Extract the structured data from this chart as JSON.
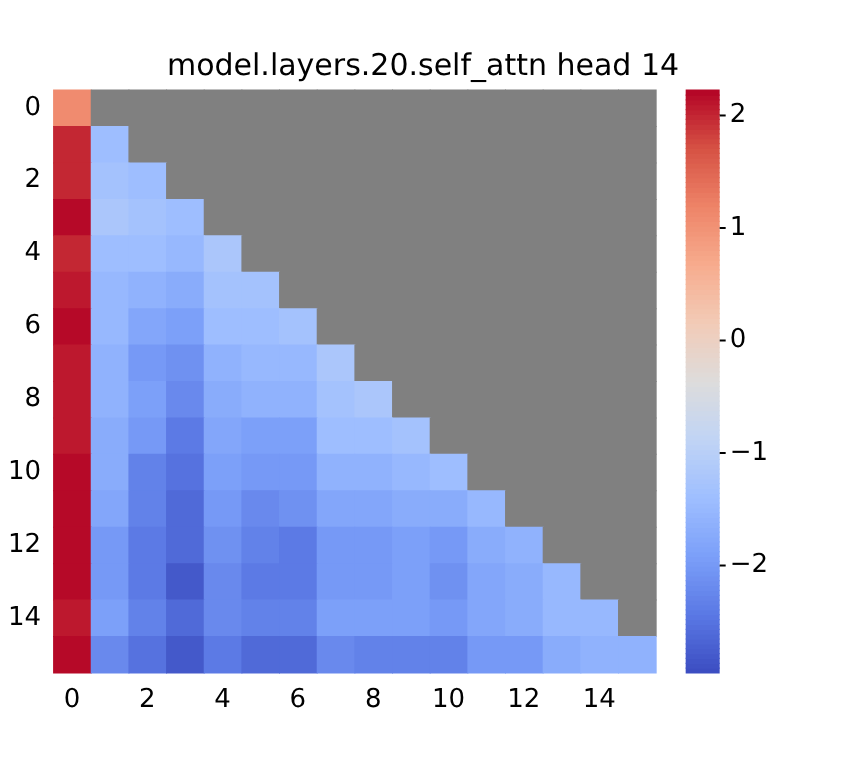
{
  "chart_data": {
    "type": "heatmap",
    "title": "model.layers.20.self_attn head 14",
    "categories": [
      "0",
      null,
      "2",
      null,
      "4",
      null,
      "6",
      null,
      "8",
      null,
      "10",
      null,
      "12",
      null,
      "14",
      null
    ],
    "y_categories": [
      "0",
      null,
      "2",
      null,
      "4",
      null,
      "6",
      null,
      "8",
      null,
      "10",
      null,
      "12",
      null,
      "14",
      null
    ],
    "cells": [
      [
        1.1,
        null,
        null,
        null,
        null,
        null,
        null,
        null,
        null,
        null,
        null,
        null,
        null,
        null,
        null,
        null
      ],
      [
        2.0,
        -1.4,
        null,
        null,
        null,
        null,
        null,
        null,
        null,
        null,
        null,
        null,
        null,
        null,
        null,
        null
      ],
      [
        2.0,
        -1.3,
        -1.4,
        null,
        null,
        null,
        null,
        null,
        null,
        null,
        null,
        null,
        null,
        null,
        null,
        null
      ],
      [
        2.2,
        -1.2,
        -1.3,
        -1.4,
        null,
        null,
        null,
        null,
        null,
        null,
        null,
        null,
        null,
        null,
        null,
        null
      ],
      [
        2.0,
        -1.4,
        -1.4,
        -1.5,
        -1.2,
        null,
        null,
        null,
        null,
        null,
        null,
        null,
        null,
        null,
        null,
        null
      ],
      [
        2.1,
        -1.5,
        -1.6,
        -1.7,
        -1.3,
        -1.3,
        null,
        null,
        null,
        null,
        null,
        null,
        null,
        null,
        null,
        null
      ],
      [
        2.2,
        -1.5,
        -1.8,
        -1.9,
        -1.4,
        -1.4,
        -1.3,
        null,
        null,
        null,
        null,
        null,
        null,
        null,
        null,
        null
      ],
      [
        2.1,
        -1.6,
        -2.0,
        -2.1,
        -1.6,
        -1.5,
        -1.5,
        -1.2,
        null,
        null,
        null,
        null,
        null,
        null,
        null,
        null
      ],
      [
        2.1,
        -1.6,
        -1.9,
        -2.2,
        -1.7,
        -1.6,
        -1.6,
        -1.3,
        -1.2,
        null,
        null,
        null,
        null,
        null,
        null,
        null
      ],
      [
        2.1,
        -1.7,
        -2.0,
        -2.4,
        -1.8,
        -1.9,
        -1.9,
        -1.4,
        -1.4,
        -1.3,
        null,
        null,
        null,
        null,
        null,
        null
      ],
      [
        2.2,
        -1.7,
        -2.3,
        -2.5,
        -1.9,
        -2.0,
        -2.0,
        -1.6,
        -1.6,
        -1.5,
        -1.4,
        null,
        null,
        null,
        null,
        null
      ],
      [
        2.2,
        -1.8,
        -2.3,
        -2.6,
        -2.0,
        -2.2,
        -2.1,
        -1.8,
        -1.8,
        -1.7,
        -1.7,
        -1.5,
        null,
        null,
        null,
        null
      ],
      [
        2.2,
        -2.0,
        -2.4,
        -2.6,
        -2.1,
        -2.3,
        -2.4,
        -2.0,
        -2.0,
        -1.9,
        -2.0,
        -1.7,
        -1.6,
        null,
        null,
        null
      ],
      [
        2.2,
        -2.0,
        -2.4,
        -2.8,
        -2.2,
        -2.4,
        -2.4,
        -2.0,
        -2.0,
        -1.9,
        -2.1,
        -1.8,
        -1.7,
        -1.5,
        null,
        null
      ],
      [
        2.1,
        -1.9,
        -2.3,
        -2.6,
        -2.2,
        -2.3,
        -2.3,
        -1.9,
        -1.9,
        -1.9,
        -2.0,
        -1.8,
        -1.7,
        -1.5,
        -1.5,
        null
      ],
      [
        2.2,
        -2.2,
        -2.5,
        -2.8,
        -2.4,
        -2.6,
        -2.6,
        -2.2,
        -2.3,
        -2.3,
        -2.3,
        -2.0,
        -2.0,
        -1.7,
        -1.6,
        -1.6
      ]
    ],
    "clim": [
      -2.95,
      2.23
    ],
    "cticks": [
      -2,
      -1,
      0,
      1,
      2
    ]
  }
}
